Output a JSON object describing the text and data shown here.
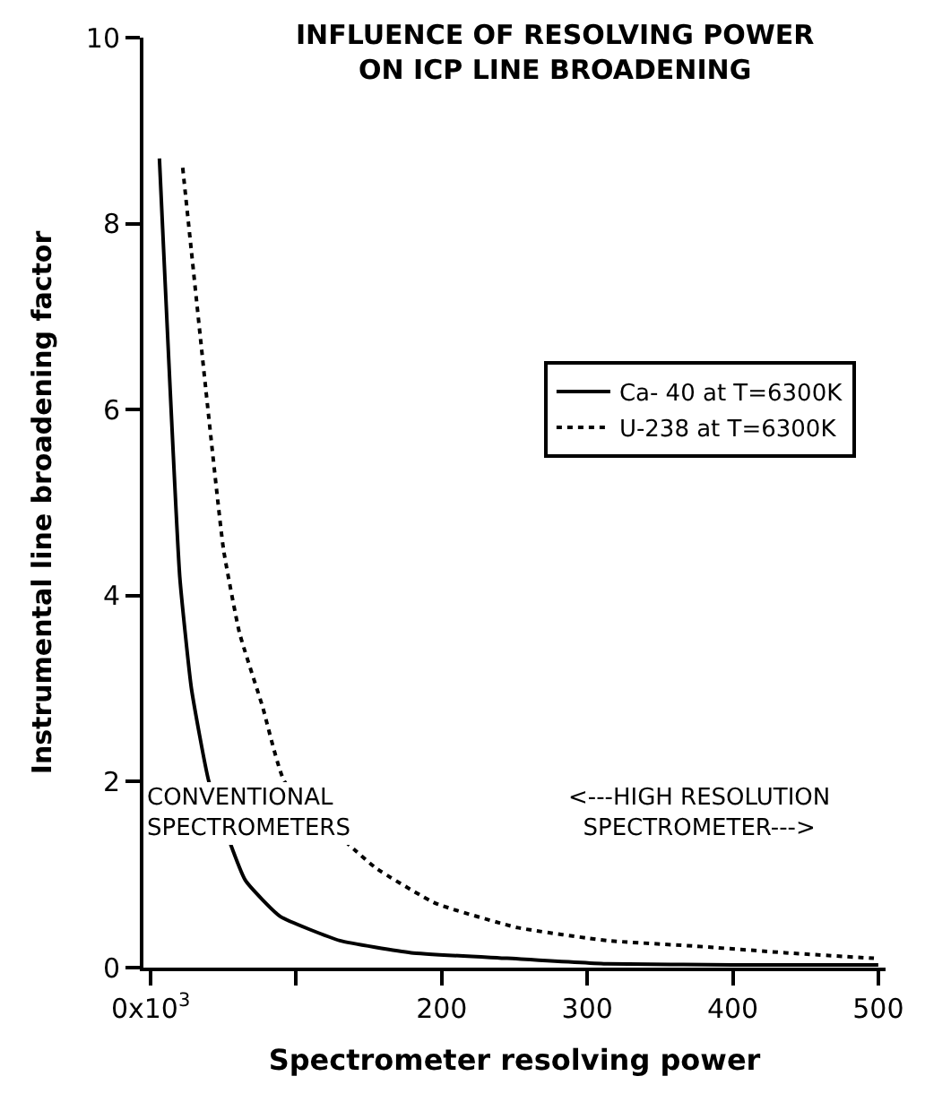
{
  "chart_data": {
    "type": "line",
    "title": "INFLUENCE OF RESOLVING POWER\nON ICP LINE BROADENING",
    "xlabel": "Spectrometer resolving power",
    "ylabel": "Instrumental line broadening factor",
    "xlim": [
      -5,
      505
    ],
    "xticks": [
      {
        "value": 0,
        "label": "0x10$^{3}$"
      },
      {
        "value": 100,
        "label": null
      },
      200,
      300,
      400,
      500
    ],
    "ylim": [
      0,
      10
    ],
    "yticks": [
      0,
      2,
      4,
      6,
      8,
      10
    ],
    "legend": "right",
    "marker": "none",
    "series": [
      {
        "name": "Ca- 40 at T=6300K",
        "color": "#000000",
        "line_style": "solid",
        "x": [
          6,
          20,
          28,
          40,
          65,
          89,
          130,
          179,
          245,
          314,
          400,
          500
        ],
        "values": [
          8.7,
          4.2,
          3.0,
          2.0,
          0.94,
          0.55,
          0.29,
          0.16,
          0.1,
          0.04,
          0.03,
          0.03
        ]
      },
      {
        "name": "U-238 at T=6300K",
        "color": "#000000",
        "line_style": "dotted",
        "x": [
          22,
          28,
          38,
          50,
          61,
          77,
          92,
          154,
          196,
          252,
          314,
          375,
          436,
          497
        ],
        "values": [
          8.6,
          7.7,
          6.2,
          4.5,
          3.6,
          2.8,
          2.0,
          1.08,
          0.69,
          0.43,
          0.29,
          0.23,
          0.16,
          0.1
        ]
      }
    ],
    "annotations": [
      "CONVENTIONAL\nSPECTROMETERS",
      "<---HIGH RESOLUTION\nSPECTROMETER--->"
    ]
  }
}
